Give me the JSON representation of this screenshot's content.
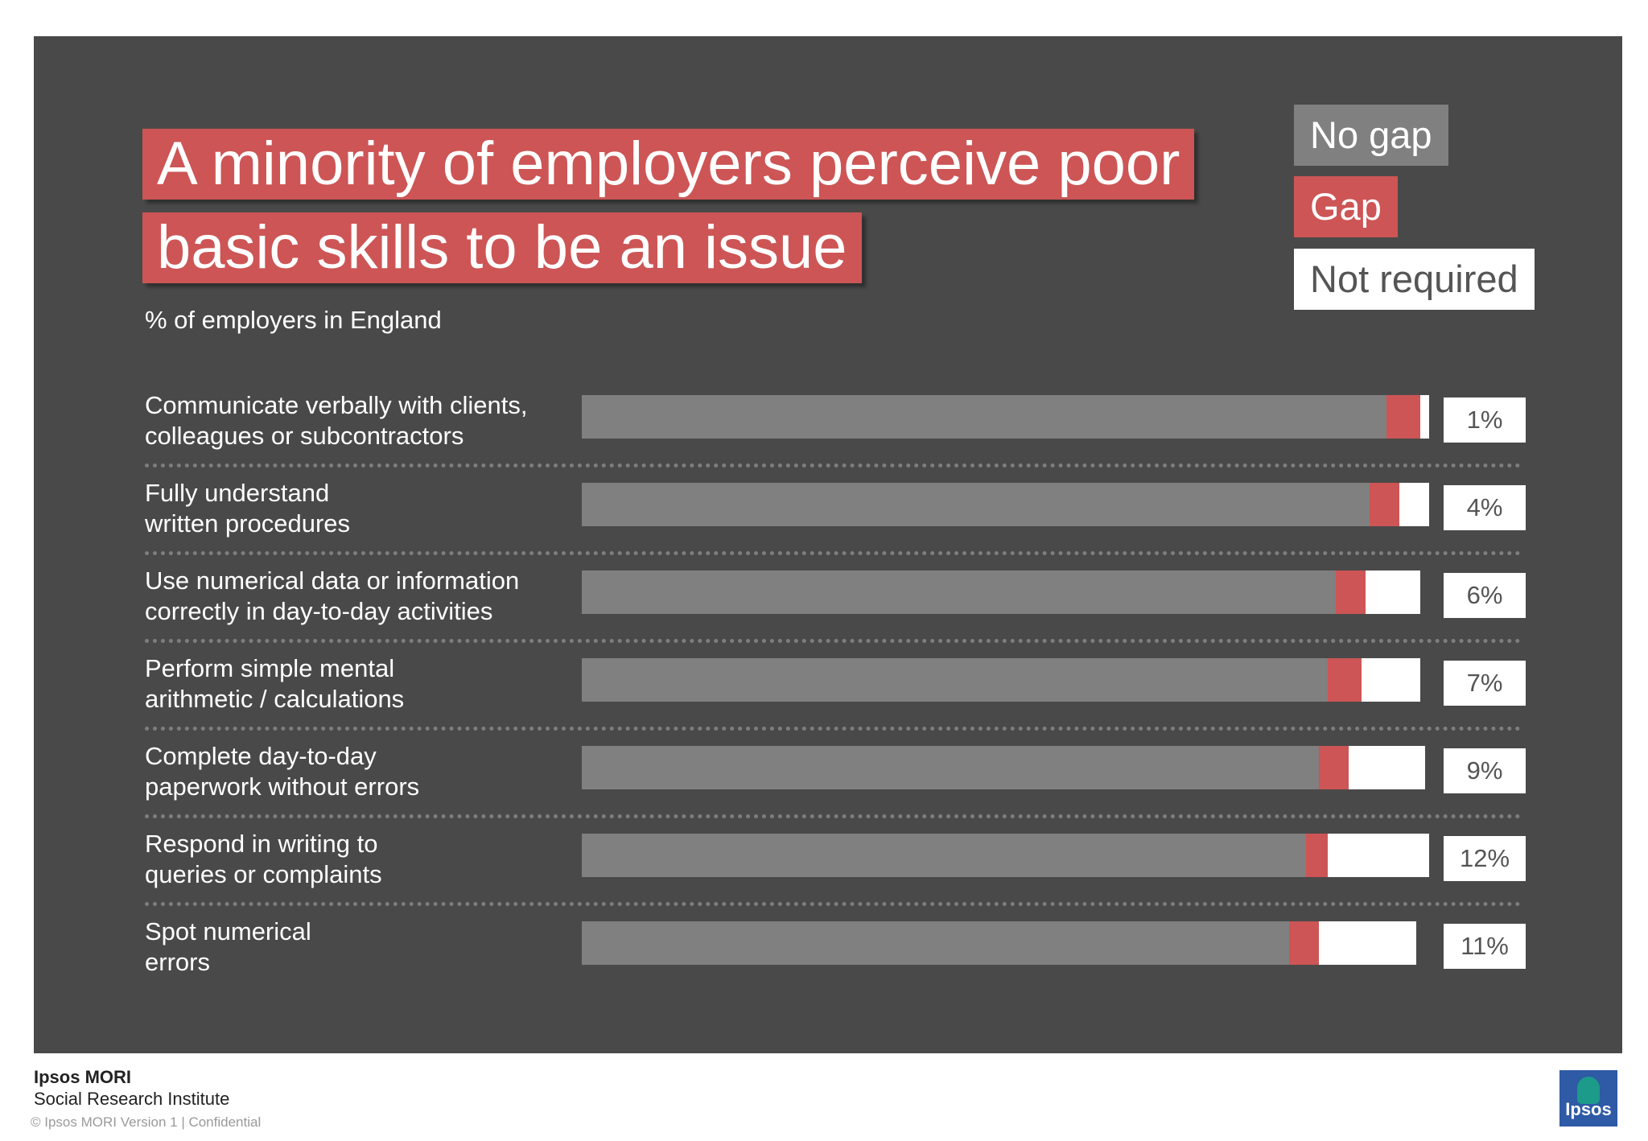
{
  "title": {
    "line1": "A minority of employers perceive poor",
    "line2": "basic skills to be an issue"
  },
  "subtitle": "% of employers in England",
  "legend": [
    {
      "label": "No gap",
      "color": "#808080",
      "text_color": "#ffffff"
    },
    {
      "label": "Gap",
      "color": "#cd5555",
      "text_color": "#ffffff"
    },
    {
      "label": "Not required",
      "color": "#ffffff",
      "text_color": "#555555"
    }
  ],
  "chart_data": {
    "type": "bar",
    "orientation": "horizontal",
    "stacked": true,
    "xlim": [
      0,
      100
    ],
    "grid": false,
    "legend_position": "top-right",
    "categories": [
      [
        "Communicate verbally with clients,",
        "colleagues or subcontractors"
      ],
      [
        "Fully understand",
        "written procedures"
      ],
      [
        "Use numerical data or information",
        "correctly in day-to-day activities"
      ],
      [
        "Perform simple mental",
        "arithmetic / calculations"
      ],
      [
        "Complete day-to-day",
        "paperwork without errors"
      ],
      [
        "Respond in writing to",
        "queries or complaints"
      ],
      [
        "Spot numerical",
        "errors"
      ]
    ],
    "series": [
      {
        "name": "No gap",
        "values": [
          95,
          93,
          89,
          88,
          87,
          85.5,
          83.5
        ]
      },
      {
        "name": "Gap",
        "values": [
          4,
          3.5,
          3.5,
          4,
          3.5,
          2.5,
          3.5
        ]
      },
      {
        "name": "Not required",
        "values": [
          1,
          3.5,
          6.5,
          7,
          9,
          12,
          11.5
        ]
      }
    ],
    "data_labels": [
      "1%",
      "4%",
      "6%",
      "7%",
      "9%",
      "12%",
      "11%"
    ]
  },
  "footer": {
    "brand": "Ipsos MORI",
    "institute": "Social Research Institute",
    "small": "© Ipsos MORI     Version 1 | Confidential",
    "logo": "Ipsos"
  }
}
